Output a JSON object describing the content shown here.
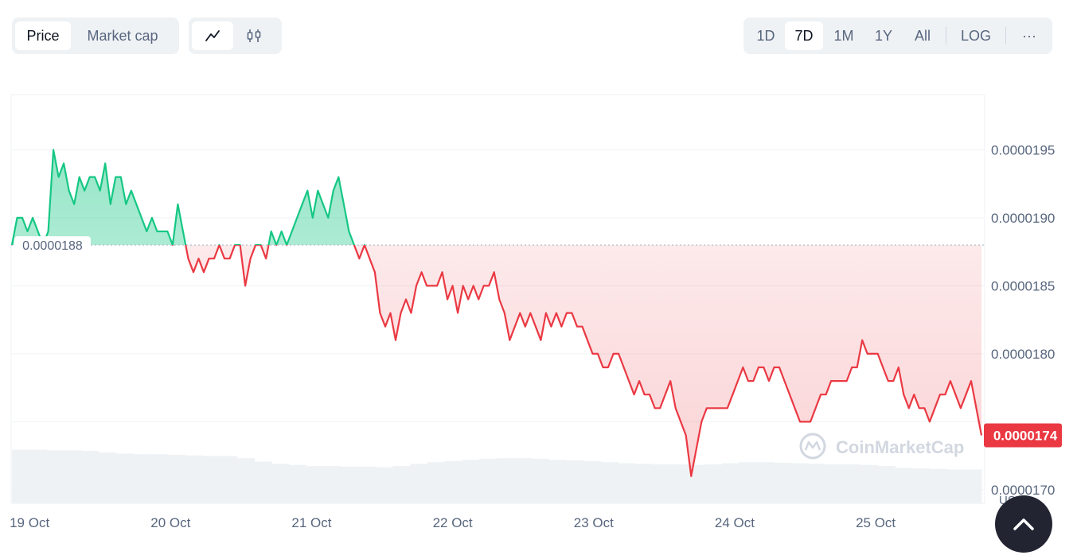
{
  "toolbar": {
    "data_type_tabs": [
      {
        "label": "Price",
        "active": true
      },
      {
        "label": "Market cap",
        "active": false
      }
    ],
    "chart_type_buttons": [
      {
        "icon": "line-chart-icon",
        "active": true
      },
      {
        "icon": "candlestick-chart-icon",
        "active": false
      }
    ],
    "range_buttons": [
      {
        "label": "1D",
        "active": false
      },
      {
        "label": "7D",
        "active": true
      },
      {
        "label": "1M",
        "active": false
      },
      {
        "label": "1Y",
        "active": false
      },
      {
        "label": "All",
        "active": false
      }
    ],
    "log_label": "LOG",
    "more_label": "···"
  },
  "watermark": "CoinMarketCap",
  "colors": {
    "up": "#16c784",
    "down": "#ea3943",
    "grid": "#eff2f5",
    "axis_text": "#58667e",
    "volume": "#eff2f5",
    "scroll_button": "#222531"
  },
  "chart_data": {
    "type": "area",
    "series": [
      {
        "values": [
          1.88e-05,
          1.9e-05,
          1.9e-05,
          1.89e-05,
          1.9e-05,
          1.89e-05,
          1.88e-05,
          1.89e-05,
          1.95e-05,
          1.93e-05,
          1.94e-05,
          1.92e-05,
          1.91e-05,
          1.93e-05,
          1.92e-05,
          1.93e-05,
          1.93e-05,
          1.92e-05,
          1.94e-05,
          1.91e-05,
          1.93e-05,
          1.93e-05,
          1.91e-05,
          1.92e-05,
          1.91e-05,
          1.9e-05,
          1.89e-05,
          1.9e-05,
          1.89e-05,
          1.89e-05,
          1.89e-05,
          1.88e-05,
          1.91e-05,
          1.89e-05,
          1.87e-05,
          1.86e-05,
          1.87e-05,
          1.86e-05,
          1.87e-05,
          1.87e-05,
          1.88e-05,
          1.87e-05,
          1.87e-05,
          1.88e-05,
          1.88e-05,
          1.85e-05,
          1.87e-05,
          1.88e-05,
          1.88e-05,
          1.87e-05,
          1.89e-05,
          1.88e-05,
          1.89e-05,
          1.88e-05,
          1.89e-05,
          1.9e-05,
          1.91e-05,
          1.92e-05,
          1.9e-05,
          1.92e-05,
          1.91e-05,
          1.9e-05,
          1.92e-05,
          1.93e-05,
          1.91e-05,
          1.89e-05,
          1.88e-05,
          1.87e-05,
          1.88e-05,
          1.87e-05,
          1.86e-05,
          1.83e-05,
          1.82e-05,
          1.83e-05,
          1.81e-05,
          1.83e-05,
          1.84e-05,
          1.83e-05,
          1.85e-05,
          1.86e-05,
          1.85e-05,
          1.85e-05,
          1.85e-05,
          1.86e-05,
          1.84e-05,
          1.85e-05,
          1.83e-05,
          1.85e-05,
          1.84e-05,
          1.85e-05,
          1.84e-05,
          1.85e-05,
          1.85e-05,
          1.86e-05,
          1.84e-05,
          1.83e-05,
          1.81e-05,
          1.82e-05,
          1.83e-05,
          1.82e-05,
          1.83e-05,
          1.82e-05,
          1.81e-05,
          1.83e-05,
          1.82e-05,
          1.83e-05,
          1.82e-05,
          1.83e-05,
          1.83e-05,
          1.82e-05,
          1.82e-05,
          1.81e-05,
          1.8e-05,
          1.8e-05,
          1.79e-05,
          1.79e-05,
          1.8e-05,
          1.8e-05,
          1.79e-05,
          1.78e-05,
          1.77e-05,
          1.78e-05,
          1.77e-05,
          1.77e-05,
          1.76e-05,
          1.76e-05,
          1.77e-05,
          1.78e-05,
          1.76e-05,
          1.75e-05,
          1.74e-05,
          1.71e-05,
          1.73e-05,
          1.75e-05,
          1.76e-05,
          1.76e-05,
          1.76e-05,
          1.76e-05,
          1.76e-05,
          1.77e-05,
          1.78e-05,
          1.79e-05,
          1.78e-05,
          1.78e-05,
          1.79e-05,
          1.79e-05,
          1.78e-05,
          1.79e-05,
          1.79e-05,
          1.78e-05,
          1.77e-05,
          1.76e-05,
          1.75e-05,
          1.75e-05,
          1.75e-05,
          1.76e-05,
          1.77e-05,
          1.77e-05,
          1.78e-05,
          1.78e-05,
          1.78e-05,
          1.78e-05,
          1.79e-05,
          1.79e-05,
          1.81e-05,
          1.8e-05,
          1.8e-05,
          1.8e-05,
          1.79e-05,
          1.78e-05,
          1.78e-05,
          1.79e-05,
          1.77e-05,
          1.76e-05,
          1.77e-05,
          1.76e-05,
          1.76e-05,
          1.75e-05,
          1.76e-05,
          1.77e-05,
          1.77e-05,
          1.78e-05,
          1.77e-05,
          1.76e-05,
          1.77e-05,
          1.78e-05,
          1.76e-05,
          1.74e-05
        ]
      }
    ],
    "y_ticks": [
      "0.0000195",
      "0.0000190",
      "0.0000185",
      "0.0000180",
      "0.0000170"
    ],
    "y_tick_values": [
      1.95e-05,
      1.9e-05,
      1.85e-05,
      1.8e-05,
      1.7e-05
    ],
    "grid_values": [
      1.95e-05,
      1.9e-05,
      1.85e-05,
      1.8e-05,
      1.75e-05,
      1.7e-05
    ],
    "ylim": [
      1.69e-05,
      1.99e-05
    ],
    "baseline_value": 1.88e-05,
    "baseline_label": "0.0000188",
    "current_value": 1.74e-05,
    "current_label": "0.0000174",
    "x_ticks": [
      "19 Oct",
      "20 Oct",
      "21 Oct",
      "22 Oct",
      "23 Oct",
      "24 Oct",
      "25 Oct"
    ],
    "xlim": [
      "18 Oct 21:00",
      "25 Oct 18:00"
    ],
    "x_tick_offset_days_from_start": [
      0.0,
      1.0,
      2.0,
      3.0,
      4.0,
      5.0,
      6.0
    ],
    "volume_axis_label": "USD",
    "grid": true,
    "volume_bars": [
      0.95,
      0.95,
      0.94,
      0.94,
      0.93,
      0.9,
      0.88,
      0.87,
      0.87,
      0.86,
      0.85,
      0.84,
      0.84,
      0.8,
      0.74,
      0.7,
      0.68,
      0.66,
      0.66,
      0.65,
      0.65,
      0.64,
      0.66,
      0.7,
      0.73,
      0.75,
      0.77,
      0.79,
      0.8,
      0.8,
      0.79,
      0.77,
      0.76,
      0.75,
      0.73,
      0.71,
      0.7,
      0.69,
      0.69,
      0.68,
      0.69,
      0.71,
      0.73,
      0.73,
      0.72,
      0.71,
      0.7,
      0.69,
      0.69,
      0.68,
      0.66,
      0.63,
      0.62,
      0.61,
      0.6,
      0.6
    ]
  }
}
